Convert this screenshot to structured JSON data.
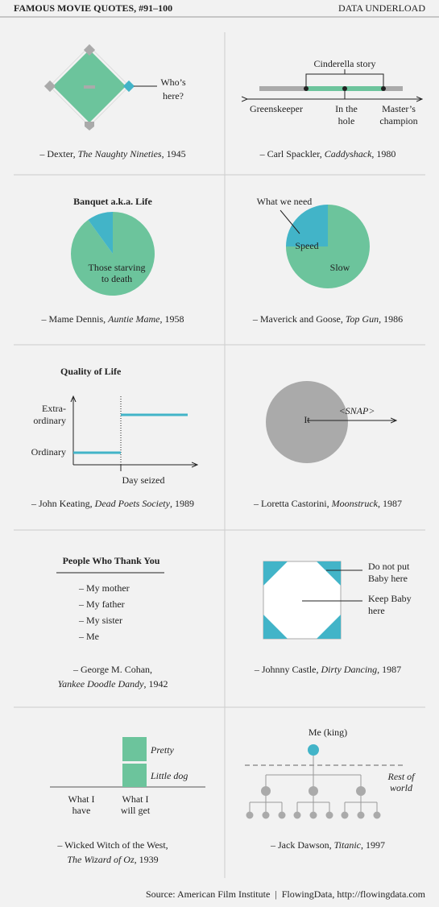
{
  "header": {
    "title": "FAMOUS MOVIE QUOTES, #91–100",
    "brand": "DATA UNDERLOAD"
  },
  "panels": [
    {
      "labels": [
        "Who’s",
        "here?"
      ],
      "caption": [
        [
          {
            "text": "– Dexter, "
          },
          {
            "text": "The Naughty Nineties",
            "italic": true
          },
          {
            "text": ", 1945"
          }
        ]
      ]
    },
    {
      "bracket": "Cinderella story",
      "labels": [
        [
          "Greenskeeper"
        ],
        [
          "In the",
          "hole"
        ],
        [
          "Master’s",
          "champion"
        ]
      ],
      "caption": [
        [
          {
            "text": "– Carl Spackler, "
          },
          {
            "text": "Caddyshack",
            "italic": true
          },
          {
            "text": ", 1980"
          }
        ]
      ]
    },
    {
      "title": "Banquet a.k.a. Life",
      "slices": [
        {
          "name": [
            "Those starving",
            "to death"
          ],
          "value": 90,
          "color": "#6cc49c"
        },
        {
          "value": 10,
          "color": "#42b4c8"
        }
      ],
      "caption": [
        [
          {
            "text": "– Mame Dennis, "
          },
          {
            "text": "Auntie Mame",
            "italic": true
          },
          {
            "text": ", 1958"
          }
        ]
      ]
    },
    {
      "annotation": "What we need",
      "slices": [
        {
          "name": [
            "Slow"
          ],
          "value": 75,
          "color": "#6cc49c"
        },
        {
          "name": [
            "Speed"
          ],
          "value": 25,
          "color": "#42b4c8"
        }
      ],
      "caption": [
        [
          {
            "text": "– Maverick and Goose, "
          },
          {
            "text": "Top Gun",
            "italic": true
          },
          {
            "text": ", 1986"
          }
        ]
      ]
    },
    {
      "title": "Quality of Life",
      "ylabels": [
        [
          "Extra-",
          "ordinary"
        ],
        [
          "Ordinary"
        ]
      ],
      "xlabel": "Day seized",
      "caption": [
        [
          {
            "text": "– John Keating, "
          },
          {
            "text": "Dead Poets Society",
            "italic": true
          },
          {
            "text": ", 1989"
          }
        ]
      ]
    },
    {
      "center": "It",
      "arrow": "<SNAP>",
      "caption": [
        [
          {
            "text": "– Loretta Castorini, "
          },
          {
            "text": "Moonstruck",
            "italic": true
          },
          {
            "text": ", 1987"
          }
        ]
      ]
    },
    {
      "title": "People Who Thank You",
      "items": [
        "– My mother",
        "– My father",
        "– My sister",
        "– Me"
      ],
      "caption": [
        [
          {
            "text": "– George M. Cohan,"
          }
        ],
        [
          {
            "text": "Yankee Doodle Dandy",
            "italic": true
          },
          {
            "text": ", 1942"
          }
        ]
      ]
    },
    {
      "labels": [
        [
          "Do not put",
          "Baby here"
        ],
        [
          "Keep Baby",
          "here"
        ]
      ],
      "caption": [
        [
          {
            "text": "– Johnny Castle, "
          },
          {
            "text": "Dirty Dancing",
            "italic": true
          },
          {
            "text": ", 1987"
          }
        ]
      ]
    },
    {
      "stack": [
        "Little dog",
        "Pretty"
      ],
      "categories": [
        [
          "What I",
          "have"
        ],
        [
          "What I",
          "will get"
        ]
      ],
      "caption": [
        [
          {
            "text": "– Wicked Witch of the West,"
          }
        ],
        [
          {
            "text": "The Wizard of Oz",
            "italic": true
          },
          {
            "text": ", 1939"
          }
        ]
      ]
    },
    {
      "root": "Me (king)",
      "note": [
        "Rest of",
        "world"
      ],
      "caption": [
        [
          {
            "text": "– Jack Dawson, "
          },
          {
            "text": "Titanic",
            "italic": true
          },
          {
            "text": ", 1997"
          }
        ]
      ]
    }
  ],
  "footer": "Source: American Film Institute  |  FlowingData, http://flowingdata.com"
}
